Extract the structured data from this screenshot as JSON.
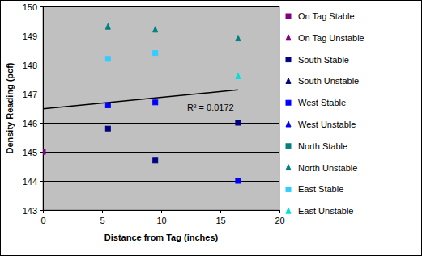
{
  "chart_data": {
    "type": "scatter",
    "xlabel": "Distance from Tag (inches)",
    "ylabel": "Density Reading (pcf)",
    "xlim": [
      0,
      20
    ],
    "ylim": [
      143,
      150
    ],
    "xticks": [
      0,
      5,
      10,
      15,
      20
    ],
    "yticks": [
      143,
      144,
      145,
      146,
      147,
      148,
      149,
      150
    ],
    "grid": true,
    "legend": "right",
    "series": [
      {
        "name": "On Tag Stable",
        "color": "#800080",
        "marker": "square",
        "x": [
          0
        ],
        "values": [
          145.0
        ]
      },
      {
        "name": "On Tag Unstable",
        "color": "#800080",
        "marker": "triangle",
        "x": [
          0
        ],
        "values": [
          145.0
        ]
      },
      {
        "name": "South Stable",
        "color": "#000080",
        "marker": "square",
        "x": [
          5.5,
          9.5,
          16.5
        ],
        "values": [
          145.8,
          144.7,
          146.0
        ]
      },
      {
        "name": "South Unstable",
        "color": "#000080",
        "marker": "triangle",
        "x": [],
        "values": []
      },
      {
        "name": "West Stable",
        "color": "#0000ff",
        "marker": "square",
        "x": [
          5.5,
          9.5,
          16.5
        ],
        "values": [
          146.6,
          146.7,
          144.0
        ]
      },
      {
        "name": "West Unstable",
        "color": "#0000ff",
        "marker": "triangle",
        "x": [],
        "values": []
      },
      {
        "name": "North Stable",
        "color": "#008080",
        "marker": "square",
        "x": [],
        "values": []
      },
      {
        "name": "North Unstable",
        "color": "#008080",
        "marker": "triangle",
        "x": [
          5.5,
          9.5,
          16.5
        ],
        "values": [
          149.3,
          149.2,
          148.9
        ]
      },
      {
        "name": "East Stable",
        "color": "#33ccff",
        "marker": "square",
        "x": [
          5.5,
          9.5
        ],
        "values": [
          148.2,
          148.4
        ]
      },
      {
        "name": "East Unstable",
        "color": "#00e0e0",
        "marker": "triangle",
        "x": [
          16.5
        ],
        "values": [
          147.6
        ]
      }
    ],
    "trendline": {
      "x": [
        0,
        16.5
      ],
      "values": [
        146.48,
        147.13
      ],
      "label": "R² = 0.0172"
    }
  }
}
